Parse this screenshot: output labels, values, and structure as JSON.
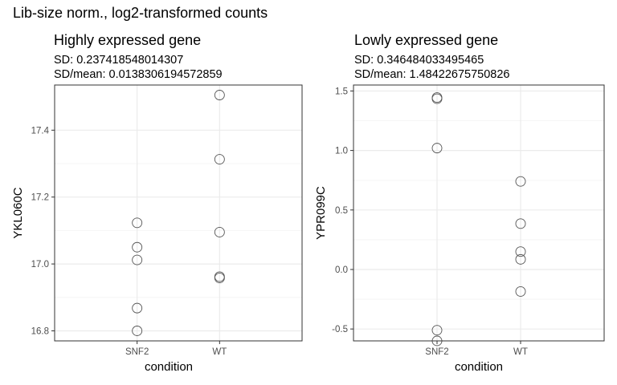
{
  "figure": {
    "title": "Lib-size norm., log2-transformed counts"
  },
  "chart_data": [
    {
      "type": "scatter",
      "title": "Highly expressed gene",
      "subtitle_lines": [
        "SD: 0.237418548014307",
        "SD/mean: 0.0138306194572859"
      ],
      "xlabel": "condition",
      "ylabel": "YKL060C",
      "categories": [
        "SNF2",
        "WT"
      ],
      "ylim": [
        16.77,
        17.535
      ],
      "y_ticks": [
        16.8,
        17.0,
        17.2,
        17.4
      ],
      "y_tick_labels": [
        "16.8",
        "17.0",
        "17.2",
        "17.4"
      ],
      "grid": true,
      "series": [
        {
          "category": "SNF2",
          "values": [
            17.123,
            17.05,
            17.012,
            16.868,
            16.8
          ]
        },
        {
          "category": "WT",
          "values": [
            17.505,
            17.313,
            17.095,
            16.962,
            16.958
          ]
        }
      ]
    },
    {
      "type": "scatter",
      "title": "Lowly expressed gene",
      "subtitle_lines": [
        "SD: 0.346484033495465",
        "SD/mean: 1.48422675750826"
      ],
      "xlabel": "condition",
      "ylabel": "YPR099C",
      "categories": [
        "SNF2",
        "WT"
      ],
      "ylim": [
        -0.6,
        1.55
      ],
      "y_ticks": [
        -0.5,
        0.0,
        0.5,
        1.0,
        1.5
      ],
      "y_tick_labels": [
        "-0.5",
        "0.0",
        "0.5",
        "1.0",
        "1.5"
      ],
      "grid": true,
      "series": [
        {
          "category": "SNF2",
          "values": [
            1.445,
            1.435,
            1.02,
            -0.51,
            -0.6
          ]
        },
        {
          "category": "WT",
          "values": [
            0.74,
            0.385,
            0.15,
            0.085,
            -0.185
          ]
        }
      ]
    }
  ],
  "colors": {
    "panel_border": "#333333",
    "grid_major": "#ebebeb",
    "grid_minor": "#f5f5f5",
    "point_stroke": "#555555",
    "tick_text": "#4d4d4d"
  }
}
